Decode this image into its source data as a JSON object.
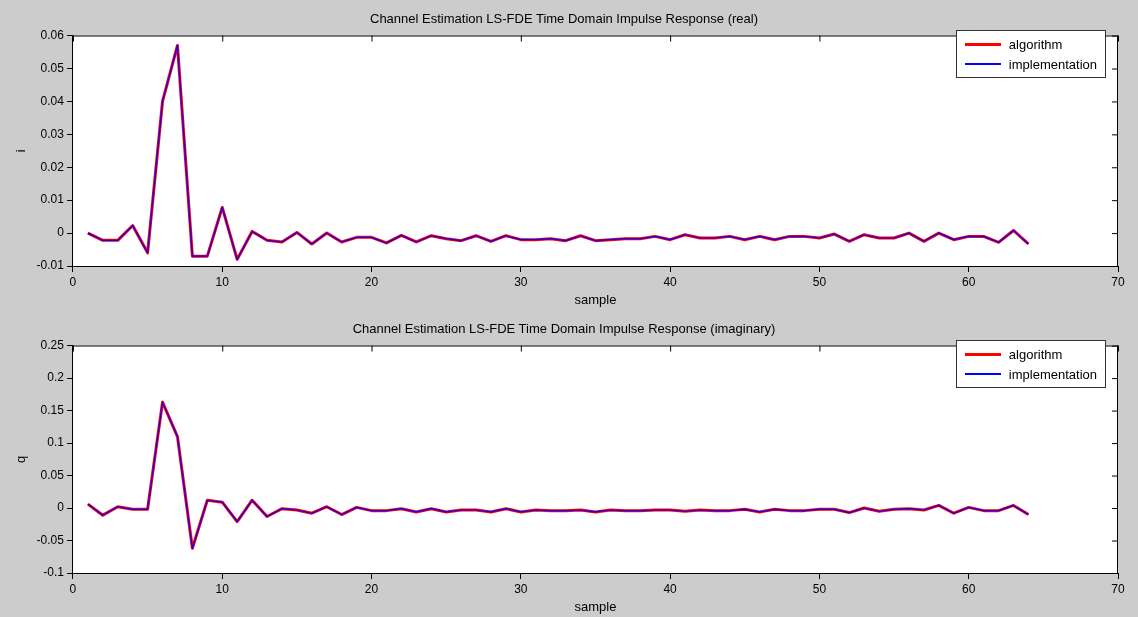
{
  "chart_data": [
    {
      "type": "line",
      "title": "Channel Estimation LS-FDE Time Domain Impulse Response (real)",
      "xlabel": "sample",
      "ylabel": "i",
      "x": [
        1,
        2,
        3,
        4,
        5,
        6,
        7,
        8,
        9,
        10,
        11,
        12,
        13,
        14,
        15,
        16,
        17,
        18,
        19,
        20,
        21,
        22,
        23,
        24,
        25,
        26,
        27,
        28,
        29,
        30,
        31,
        32,
        33,
        34,
        35,
        36,
        37,
        38,
        39,
        40,
        41,
        42,
        43,
        44,
        45,
        46,
        47,
        48,
        49,
        50,
        51,
        52,
        53,
        54,
        55,
        56,
        57,
        58,
        59,
        60,
        61,
        62,
        63,
        64
      ],
      "series": [
        {
          "name": "algorithm",
          "color": "#ff0000",
          "values": [
            0,
            -0.0022,
            -0.0022,
            0.0023,
            -0.006,
            0.04,
            0.057,
            -0.007,
            -0.007,
            0.0078,
            -0.008,
            0.0005,
            -0.0022,
            -0.0027,
            0.0002,
            -0.0033,
            0,
            -0.0027,
            -0.0013,
            -0.0013,
            -0.003,
            -0.0007,
            -0.0027,
            -0.0008,
            -0.0017,
            -0.0023,
            -0.0008,
            -0.0025,
            -0.0008,
            -0.002,
            -0.002,
            -0.0017,
            -0.0023,
            -0.0008,
            -0.0023,
            -0.002,
            -0.0017,
            -0.0017,
            -0.001,
            -0.002,
            -0.0005,
            -0.0015,
            -0.0015,
            -0.001,
            -0.002,
            -0.001,
            -0.002,
            -0.001,
            -0.001,
            -0.0015,
            -0.0003,
            -0.0025,
            -0.0005,
            -0.0015,
            -0.0015,
            0,
            -0.0025,
            0,
            -0.002,
            -0.001,
            -0.001,
            -0.0028,
            0.0008,
            -0.0033
          ]
        },
        {
          "name": "implementation",
          "color": "#0000ff",
          "values": [
            0,
            -0.0022,
            -0.0022,
            0.0023,
            -0.006,
            0.04,
            0.057,
            -0.007,
            -0.007,
            0.0078,
            -0.008,
            0.0005,
            -0.0022,
            -0.0027,
            0.0002,
            -0.0033,
            0,
            -0.0027,
            -0.0013,
            -0.0013,
            -0.003,
            -0.0007,
            -0.0027,
            -0.0008,
            -0.0017,
            -0.0023,
            -0.0008,
            -0.0025,
            -0.0008,
            -0.002,
            -0.002,
            -0.0017,
            -0.0023,
            -0.0008,
            -0.0023,
            -0.002,
            -0.0017,
            -0.0017,
            -0.001,
            -0.002,
            -0.0005,
            -0.0015,
            -0.0015,
            -0.001,
            -0.002,
            -0.001,
            -0.002,
            -0.001,
            -0.001,
            -0.0015,
            -0.0003,
            -0.0025,
            -0.0005,
            -0.0015,
            -0.0015,
            0,
            -0.0025,
            0,
            -0.002,
            -0.001,
            -0.001,
            -0.0028,
            0.0008,
            -0.0033
          ]
        }
      ],
      "xlim": [
        0,
        70
      ],
      "xticks": [
        0,
        10,
        20,
        30,
        40,
        50,
        60,
        70
      ],
      "ylim": [
        -0.01,
        0.06
      ],
      "yticks": [
        -0.01,
        0,
        0.01,
        0.02,
        0.03,
        0.04,
        0.05,
        0.06
      ],
      "grid": false,
      "legend": "top right",
      "marker": "none",
      "line_style": "solid"
    },
    {
      "type": "line",
      "title": "Channel Estimation LS-FDE Time Domain Impulse Response (imaginary)",
      "xlabel": "sample",
      "ylabel": "q",
      "x": [
        1,
        2,
        3,
        4,
        5,
        6,
        7,
        8,
        9,
        10,
        11,
        12,
        13,
        14,
        15,
        16,
        17,
        18,
        19,
        20,
        21,
        22,
        23,
        24,
        25,
        26,
        27,
        28,
        29,
        30,
        31,
        32,
        33,
        34,
        35,
        36,
        37,
        38,
        39,
        40,
        41,
        42,
        43,
        44,
        45,
        46,
        47,
        48,
        49,
        50,
        51,
        52,
        53,
        54,
        55,
        56,
        57,
        58,
        59,
        60,
        61,
        62,
        63,
        64
      ],
      "series": [
        {
          "name": "algorithm",
          "color": "#ff0000",
          "values": [
            0.006,
            -0.011,
            0.002,
            -0.002,
            -0.002,
            0.163,
            0.11,
            -0.062,
            0.012,
            0.009,
            -0.021,
            0.012,
            -0.013,
            -0.001,
            -0.003,
            -0.008,
            0.002,
            -0.01,
            0.001,
            -0.004,
            -0.004,
            -0.001,
            -0.006,
            -0.001,
            -0.006,
            -0.003,
            -0.003,
            -0.006,
            -0.001,
            -0.006,
            -0.003,
            -0.004,
            -0.004,
            -0.003,
            -0.006,
            -0.003,
            -0.004,
            -0.004,
            -0.003,
            -0.003,
            -0.005,
            -0.003,
            -0.004,
            -0.004,
            -0.002,
            -0.006,
            -0.002,
            -0.004,
            -0.004,
            -0.002,
            -0.002,
            -0.007,
            0,
            -0.005,
            -0.002,
            -0.001,
            -0.003,
            0.004,
            -0.008,
            0.001,
            -0.004,
            -0.004,
            0.004,
            -0.01
          ]
        },
        {
          "name": "implementation",
          "color": "#0000ff",
          "values": [
            0.006,
            -0.011,
            0.002,
            -0.002,
            -0.002,
            0.163,
            0.11,
            -0.062,
            0.012,
            0.009,
            -0.021,
            0.012,
            -0.013,
            -0.001,
            -0.003,
            -0.008,
            0.002,
            -0.01,
            0.001,
            -0.004,
            -0.004,
            -0.001,
            -0.006,
            -0.001,
            -0.006,
            -0.003,
            -0.003,
            -0.006,
            -0.001,
            -0.006,
            -0.003,
            -0.004,
            -0.004,
            -0.003,
            -0.006,
            -0.003,
            -0.004,
            -0.004,
            -0.003,
            -0.003,
            -0.005,
            -0.003,
            -0.004,
            -0.004,
            -0.002,
            -0.006,
            -0.002,
            -0.004,
            -0.004,
            -0.002,
            -0.002,
            -0.007,
            0,
            -0.005,
            -0.002,
            -0.001,
            -0.003,
            0.004,
            -0.008,
            0.001,
            -0.004,
            -0.004,
            0.004,
            -0.01
          ]
        }
      ],
      "xlim": [
        0,
        70
      ],
      "xticks": [
        0,
        10,
        20,
        30,
        40,
        50,
        60,
        70
      ],
      "ylim": [
        -0.1,
        0.25
      ],
      "yticks": [
        -0.1,
        -0.05,
        0,
        0.05,
        0.1,
        0.15,
        0.2,
        0.25
      ],
      "grid": false,
      "legend": "top right",
      "marker": "none",
      "line_style": "solid"
    }
  ]
}
